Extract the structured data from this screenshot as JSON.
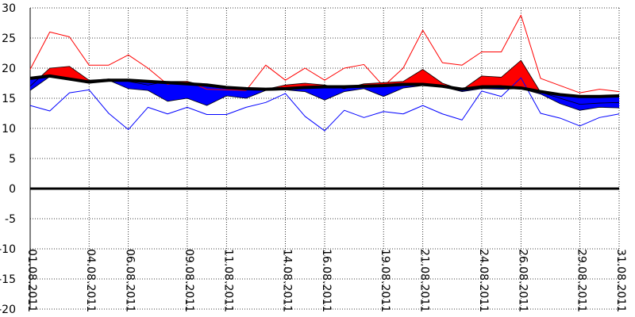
{
  "chart_data": {
    "type": "area",
    "title": "",
    "xlabel": "",
    "ylabel": "",
    "ylim": [
      -20,
      30
    ],
    "yticks": [
      "30",
      "25",
      "20",
      "15",
      "10",
      "5",
      "0",
      "-5",
      "-10",
      "-15",
      "-20"
    ],
    "grid": true,
    "x_tick_labels": [
      "01.08.2011",
      "04.08.2011",
      "06.08.2011",
      "09.08.2011",
      "11.08.2011",
      "14.08.2011",
      "16.08.2011",
      "19.08.2011",
      "21.08.2011",
      "24.08.2011",
      "26.08.2011",
      "29.08.2011",
      "31.08.2011"
    ],
    "dates": [
      "01.08.2011",
      "02.08.2011",
      "03.08.2011",
      "04.08.2011",
      "05.08.2011",
      "06.08.2011",
      "07.08.2011",
      "08.08.2011",
      "09.08.2011",
      "10.08.2011",
      "11.08.2011",
      "12.08.2011",
      "13.08.2011",
      "14.08.2011",
      "15.08.2011",
      "16.08.2011",
      "17.08.2011",
      "18.08.2011",
      "19.08.2011",
      "20.08.2011",
      "21.08.2011",
      "22.08.2011",
      "23.08.2011",
      "24.08.2011",
      "25.08.2011",
      "26.08.2011",
      "27.08.2011",
      "28.08.2011",
      "29.08.2011",
      "30.08.2011",
      "31.08.2011"
    ],
    "series": [
      {
        "color": "#ff0000",
        "values": [
          19.8,
          26.0,
          25.2,
          20.5,
          20.5,
          22.2,
          20.0,
          17.3,
          17.8,
          16.5,
          16.4,
          16.3,
          20.5,
          18.0,
          20.0,
          18.0,
          20.0,
          20.6,
          17.0,
          20.0,
          26.3,
          20.9,
          20.5,
          22.7,
          22.7,
          28.8,
          18.3,
          17.1,
          15.9,
          16.5,
          16.1
        ]
      },
      {
        "color": "#0000ff",
        "values": [
          13.8,
          12.9,
          15.9,
          16.4,
          12.5,
          9.8,
          13.5,
          12.4,
          13.5,
          12.3,
          12.3,
          13.5,
          14.3,
          15.8,
          12.0,
          9.6,
          13.0,
          11.8,
          12.8,
          12.4,
          13.8,
          12.4,
          11.4,
          16.2,
          15.3,
          18.4,
          12.5,
          11.7,
          10.4,
          11.8,
          12.4
        ]
      },
      {
        "color": "#000000",
        "values": [
          18.3,
          18.7,
          18.2,
          17.7,
          18.0,
          18.0,
          17.8,
          17.6,
          17.4,
          17.2,
          16.8,
          16.6,
          16.5,
          16.6,
          16.8,
          16.9,
          16.9,
          17.0,
          17.1,
          17.3,
          17.3,
          17.0,
          16.5,
          16.9,
          16.9,
          16.7,
          16.1,
          15.6,
          15.3,
          15.3,
          15.4
        ]
      },
      {
        "color": "#000000",
        "values": [
          17.0,
          20.0,
          20.3,
          18.0,
          18.2,
          17.8,
          17.2,
          17.8,
          17.8,
          17.0,
          16.6,
          16.5,
          16.5,
          17.2,
          17.5,
          17.2,
          16.6,
          17.4,
          17.6,
          17.8,
          19.8,
          17.5,
          16.4,
          18.7,
          18.5,
          21.3,
          16.0,
          15.0,
          14.0,
          14.2,
          14.3
        ]
      },
      {
        "color": "#000000",
        "values": [
          16.3,
          18.6,
          18.1,
          17.5,
          18.0,
          16.6,
          16.3,
          14.5,
          15.0,
          13.8,
          15.4,
          15.0,
          16.3,
          16.4,
          16.1,
          14.7,
          16.1,
          16.6,
          15.3,
          16.7,
          17.1,
          16.9,
          16.1,
          16.6,
          16.5,
          16.6,
          15.7,
          14.1,
          13.0,
          13.5,
          13.4
        ]
      }
    ],
    "zero_line": 0
  }
}
